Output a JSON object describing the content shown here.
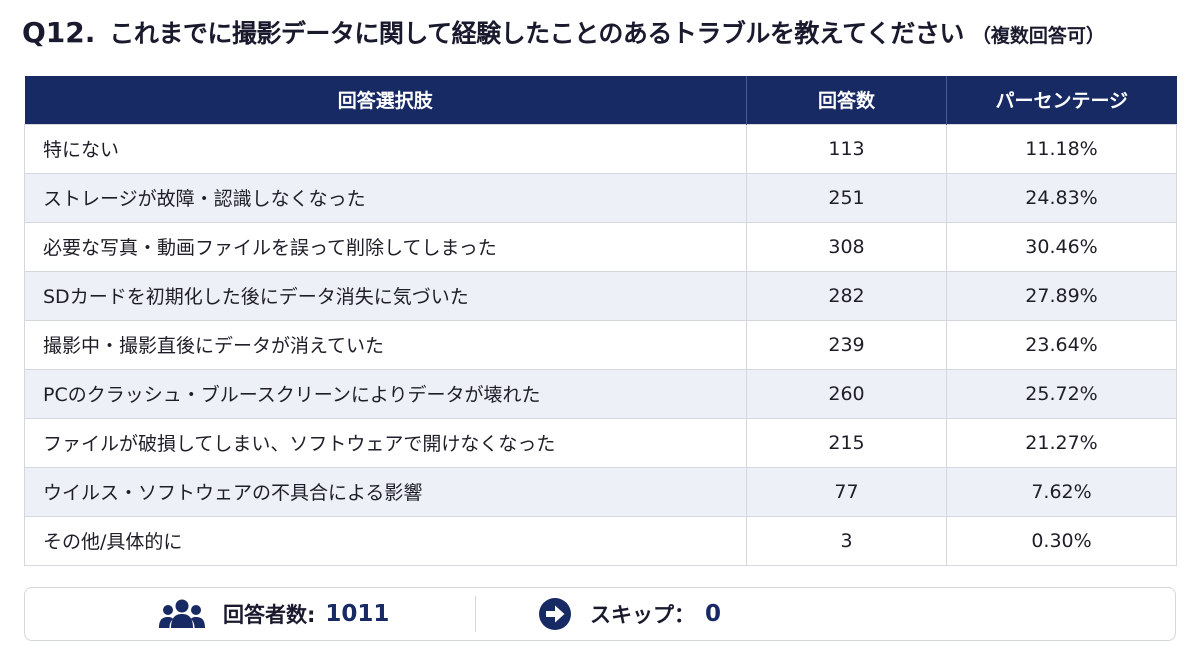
{
  "question": {
    "number": "Q12.",
    "text": "これまでに撮影データに関して経験したことのあるトラブルを教えてください",
    "note": "（複数回答可）"
  },
  "table": {
    "headers": {
      "option": "回答選択肢",
      "count": "回答数",
      "percent": "パーセンテージ"
    },
    "rows": [
      {
        "option": "特にない",
        "count": "113",
        "percent": "11.18%"
      },
      {
        "option": "ストレージが故障・認識しなくなった",
        "count": "251",
        "percent": "24.83%"
      },
      {
        "option": "必要な写真・動画ファイルを誤って削除してしまった",
        "count": "308",
        "percent": "30.46%"
      },
      {
        "option": "SDカードを初期化した後にデータ消失に気づいた",
        "count": "282",
        "percent": "27.89%"
      },
      {
        "option": "撮影中・撮影直後にデータが消えていた",
        "count": "239",
        "percent": "23.64%"
      },
      {
        "option": "PCのクラッシュ・ブルースクリーンによりデータが壊れた",
        "count": "260",
        "percent": "25.72%"
      },
      {
        "option": "ファイルが破損してしまい、ソフトウェアで開けなくなった",
        "count": "215",
        "percent": "21.27%"
      },
      {
        "option": "ウイルス・ソフトウェアの不具合による影響",
        "count": "77",
        "percent": "7.62%"
      },
      {
        "option": "その他/具体的に",
        "count": "3",
        "percent": "0.30%"
      }
    ]
  },
  "footer": {
    "respondents_label": "回答者数:",
    "respondents_value": "1011",
    "respondents_icon": "users-icon",
    "skip_label": "スキップ：",
    "skip_value": "0",
    "skip_icon": "arrow-right-circle-icon"
  },
  "colors": {
    "header_bg": "#172a63",
    "accent": "#172a63",
    "stripe": "#eef0f7",
    "border": "#d4d7e0"
  }
}
